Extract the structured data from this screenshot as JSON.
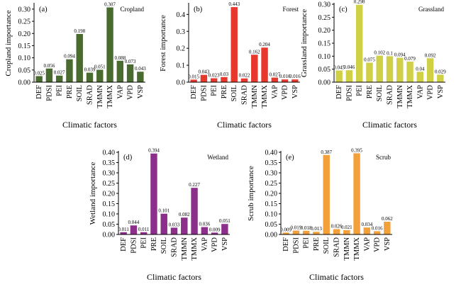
{
  "chart_data": [
    {
      "type": "bar",
      "panel_label": "(a)",
      "name": "Cropland",
      "categories": [
        "DEF",
        "PDSI",
        "PEI",
        "PRE",
        "SOIL",
        "SRAD",
        "TMMN",
        "TMMX",
        "VAP",
        "VPD",
        "VSP"
      ],
      "values": [
        0.025,
        0.056,
        0.027,
        0.094,
        0.198,
        0.039,
        0.051,
        0.307,
        0.088,
        0.073,
        0.043
      ],
      "value_labels": [
        "0.025",
        "0.056",
        "0.027",
        "0.094",
        "0.198",
        "0.039",
        "0.051",
        "0.307",
        "0.088",
        "0.073",
        "0.043"
      ],
      "ylabel": "Cropland importance",
      "xlabel": "Climatic factors",
      "ylim": [
        0,
        0.32
      ],
      "yticks": [
        0.0,
        0.05,
        0.1,
        0.15,
        0.2,
        0.25,
        0.3
      ],
      "ytick_labels": [
        "0.00",
        "0.05",
        "0.10",
        "0.15",
        "0.20",
        "0.25",
        "0.30"
      ],
      "color": "#4a6b2f"
    },
    {
      "type": "bar",
      "panel_label": "(b)",
      "name": "Forest",
      "categories": [
        "DEF",
        "PDSI",
        "PEI",
        "PRE",
        "SOIL",
        "SRAD",
        "TMMN",
        "TMMX",
        "VAP",
        "VPD",
        "VSP"
      ],
      "values": [
        0.015,
        0.043,
        0.023,
        0.03,
        0.443,
        0.022,
        0.162,
        0.204,
        0.027,
        0.016,
        0.016
      ],
      "value_labels": [
        "0.015",
        "0.043",
        "0.023",
        "0.03",
        "0.443",
        "0.022",
        "0.162",
        "0.204",
        "0.027",
        "0.016",
        "0.016"
      ],
      "ylabel": "Forest importance",
      "xlabel": "Climatic factors",
      "ylim": [
        0,
        0.46
      ],
      "yticks": [
        0.0,
        0.1,
        0.2,
        0.3,
        0.4
      ],
      "ytick_labels": [
        "0.0",
        "0.1",
        "0.2",
        "0.3",
        "0.4"
      ],
      "color": "#e8372c"
    },
    {
      "type": "bar",
      "panel_label": "(c)",
      "name": "Grassland",
      "categories": [
        "DEF",
        "PDSI",
        "PEI",
        "PRE",
        "SOIL",
        "SRAD",
        "TMMN",
        "TMMX",
        "VAP",
        "VPD",
        "VSP"
      ],
      "values": [
        0.045,
        0.046,
        0.298,
        0.075,
        0.102,
        0.1,
        0.094,
        0.079,
        0.04,
        0.092,
        0.029
      ],
      "value_labels": [
        "0.045",
        "0.046",
        "0.298",
        "0.075",
        "0.102",
        "0.1",
        "0.094",
        "0.079",
        "0.04",
        "0.092",
        "0.029"
      ],
      "ylabel": "Grassland importance",
      "xlabel": "Climatic factors",
      "ylim": [
        0,
        0.3
      ],
      "yticks": [
        0.0,
        0.05,
        0.1,
        0.15,
        0.2,
        0.25,
        0.3
      ],
      "ytick_labels": [
        "0.00",
        "0.05",
        "0.10",
        "0.15",
        "0.20",
        "0.25",
        "0.30"
      ],
      "color": "#cfd046"
    },
    {
      "type": "bar",
      "panel_label": "(d)",
      "name": "Wetland",
      "categories": [
        "DEF",
        "PDSI",
        "PEI",
        "PRE",
        "SOIL",
        "SRAD",
        "TMMN",
        "TMMX",
        "VAP",
        "VPD",
        "VSP"
      ],
      "values": [
        0.011,
        0.044,
        0.011,
        0.394,
        0.101,
        0.033,
        0.082,
        0.227,
        0.036,
        0.009,
        0.051
      ],
      "value_labels": [
        "0.011",
        "0.044",
        "0.011",
        "0.394",
        "0.101",
        "0.033",
        "0.082",
        "0.227",
        "0.036",
        "0.009",
        "0.051"
      ],
      "ylabel": "Wetland importance",
      "xlabel": "Climatic factors",
      "ylim": [
        0,
        0.4
      ],
      "yticks": [
        0.0,
        0.05,
        0.1,
        0.15,
        0.2,
        0.25,
        0.3,
        0.35,
        0.4
      ],
      "ytick_labels": [
        "0.00",
        "0.05",
        "0.10",
        "0.15",
        "0.20",
        "0.25",
        "0.30",
        "0.35",
        "0.40"
      ],
      "color": "#8b2f8a"
    },
    {
      "type": "bar",
      "panel_label": "(e)",
      "name": "Scrub",
      "categories": [
        "DEF",
        "PDSI",
        "PEI",
        "PRE",
        "SOIL",
        "SRAD",
        "TMMN",
        "TMMX",
        "VAP",
        "VPD",
        "VSP"
      ],
      "values": [
        0.009,
        0.019,
        0.018,
        0.013,
        0.387,
        0.026,
        0.021,
        0.395,
        0.034,
        0.016,
        0.062
      ],
      "value_labels": [
        "0.009",
        "0.019",
        "0.018",
        "0.013",
        "0.387",
        "0.026",
        "0.021",
        "0.395",
        "0.034",
        "0.016",
        "0.062"
      ],
      "ylabel": "Scrub importance",
      "xlabel": "Climatic factors",
      "ylim": [
        0,
        0.4
      ],
      "yticks": [
        0.0,
        0.05,
        0.1,
        0.15,
        0.2,
        0.25,
        0.3,
        0.35,
        0.4
      ],
      "ytick_labels": [
        "0.00",
        "0.05",
        "0.10",
        "0.15",
        "0.20",
        "0.25",
        "0.30",
        "0.35",
        "0.40"
      ],
      "color": "#f3a03a"
    }
  ]
}
